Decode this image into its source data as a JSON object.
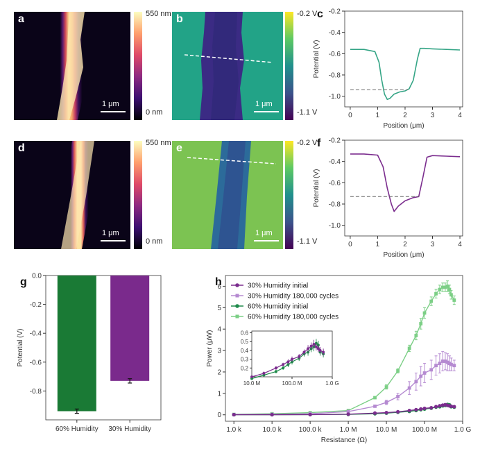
{
  "panels": {
    "a": {
      "label": "a",
      "scalebar": "1 μm",
      "cbar_top": "550 nm",
      "cbar_bottom": "0 nm"
    },
    "b": {
      "label": "b",
      "scalebar": "1 μm",
      "cbar_top": "-0.2 V",
      "cbar_bottom": "-1.1 V"
    },
    "c": {
      "label": "c"
    },
    "d": {
      "label": "d",
      "scalebar": "1 μm",
      "cbar_top": "550 nm",
      "cbar_bottom": "0 nm"
    },
    "e": {
      "label": "e",
      "scalebar": "1 μm",
      "cbar_top": "-0.2 V",
      "cbar_bottom": "-1.1 V"
    },
    "f": {
      "label": "f"
    },
    "g": {
      "label": "g"
    },
    "h": {
      "label": "h"
    }
  },
  "colors": {
    "green": "#1e8a4a",
    "light_green": "#7ccf86",
    "purple": "#7b2d8e",
    "light_purple": "#b58ad1",
    "teal": "#35a586",
    "bar_green": "#1a7a35",
    "bar_purple": "#7a2a8c"
  },
  "chart_data": [
    {
      "id": "c",
      "type": "line",
      "xlabel": "Position (μm)",
      "ylabel": "Potential (V)",
      "xlim": [
        -0.2,
        4.1
      ],
      "ylim": [
        -1.1,
        -0.2
      ],
      "xticks": [
        0,
        1,
        2,
        3,
        4
      ],
      "yticks": [
        -1.0,
        -0.8,
        -0.6,
        -0.4,
        -0.2
      ],
      "series": [
        {
          "x": [
            0,
            0.5,
            0.9,
            1.05,
            1.15,
            1.25,
            1.35,
            1.45,
            1.6,
            1.8,
            2.0,
            2.15,
            2.3,
            2.45,
            2.55,
            2.7,
            3.0,
            3.5,
            4.0
          ],
          "y": [
            -0.56,
            -0.56,
            -0.58,
            -0.68,
            -0.85,
            -0.98,
            -1.03,
            -1.02,
            -0.98,
            -0.96,
            -0.95,
            -0.93,
            -0.85,
            -0.65,
            -0.55,
            -0.55,
            -0.555,
            -0.56,
            -0.565
          ]
        }
      ],
      "reference_line": {
        "y": -0.94,
        "x_range": [
          0,
          2.1
        ]
      }
    },
    {
      "id": "f",
      "type": "line",
      "xlabel": "Position (μm)",
      "ylabel": "Potential (V)",
      "xlim": [
        -0.2,
        4.1
      ],
      "ylim": [
        -1.1,
        -0.2
      ],
      "xticks": [
        0,
        1,
        2,
        3,
        4
      ],
      "yticks": [
        -1.0,
        -0.8,
        -0.6,
        -0.4,
        -0.2
      ],
      "series": [
        {
          "x": [
            0,
            0.5,
            1.0,
            1.2,
            1.35,
            1.5,
            1.6,
            1.75,
            2.0,
            2.3,
            2.5,
            2.65,
            2.8,
            3.0,
            3.5,
            4.0
          ],
          "y": [
            -0.33,
            -0.33,
            -0.34,
            -0.45,
            -0.65,
            -0.8,
            -0.87,
            -0.82,
            -0.77,
            -0.74,
            -0.73,
            -0.55,
            -0.36,
            -0.345,
            -0.35,
            -0.355
          ]
        }
      ],
      "reference_line": {
        "y": -0.73,
        "x_range": [
          0,
          2.5
        ]
      }
    },
    {
      "id": "g",
      "type": "bar",
      "ylabel": "Potential (V)",
      "categories": [
        "60% Humidity",
        "30% Humidity"
      ],
      "values": [
        -0.94,
        -0.73
      ],
      "errors": [
        0.015,
        0.015
      ],
      "ylim": [
        -1.0,
        0.0
      ],
      "yticks": [
        0.0,
        -0.2,
        -0.4,
        -0.6,
        -0.8
      ]
    },
    {
      "id": "h",
      "type": "line",
      "xlabel": "Resistance (Ω)",
      "ylabel": "Power (μW)",
      "xscale": "log",
      "xlim": [
        600,
        1000000000
      ],
      "ylim": [
        -0.3,
        6.5
      ],
      "xticks": [
        1000,
        10000,
        100000,
        1000000,
        10000000,
        100000000,
        1000000000
      ],
      "xticklabels": [
        "1.0 k",
        "10.0 k",
        "100.0 k",
        "1.0 M",
        "10.0 M",
        "100.0 M",
        "1.0 G"
      ],
      "yticks": [
        0,
        1,
        2,
        3,
        4,
        5,
        6
      ],
      "legend": "top-left",
      "series": [
        {
          "name": "30% Humidity initial",
          "x": [
            1000,
            10000,
            100000,
            1000000,
            5000000,
            10000000,
            20000000,
            40000000,
            60000000,
            80000000,
            100000000,
            150000000,
            200000000,
            250000000,
            300000000,
            350000000,
            400000000,
            450000000,
            500000000,
            600000000
          ],
          "y": [
            0.005,
            0.006,
            0.01,
            0.03,
            0.08,
            0.1,
            0.14,
            0.2,
            0.24,
            0.27,
            0.3,
            0.33,
            0.38,
            0.42,
            0.45,
            0.47,
            0.44,
            0.42,
            0.4,
            0.38
          ],
          "err": [
            0,
            0,
            0,
            0,
            0.01,
            0.01,
            0.02,
            0.02,
            0.02,
            0.03,
            0.03,
            0.03,
            0.03,
            0.04,
            0.04,
            0.05,
            0.04,
            0.04,
            0.04,
            0.04
          ]
        },
        {
          "name": "30% Humidity 180,000 cycles",
          "x": [
            1000,
            10000,
            100000,
            1000000,
            5000000,
            10000000,
            20000000,
            40000000,
            60000000,
            80000000,
            100000000,
            150000000,
            200000000,
            250000000,
            300000000,
            350000000,
            400000000,
            450000000,
            500000000,
            600000000
          ],
          "y": [
            0.01,
            0.02,
            0.05,
            0.15,
            0.4,
            0.58,
            0.85,
            1.25,
            1.55,
            1.8,
            1.95,
            2.1,
            2.3,
            2.4,
            2.5,
            2.5,
            2.45,
            2.4,
            2.35,
            2.3
          ],
          "err": [
            0,
            0,
            0,
            0,
            0.05,
            0.1,
            0.15,
            0.3,
            0.4,
            0.45,
            0.45,
            0.45,
            0.45,
            0.45,
            0.45,
            0.4,
            0.4,
            0.35,
            0.3,
            0.25
          ]
        },
        {
          "name": "60% Humidity initial",
          "x": [
            1000,
            10000,
            100000,
            1000000,
            5000000,
            10000000,
            20000000,
            40000000,
            60000000,
            80000000,
            100000000,
            150000000,
            200000000,
            250000000,
            300000000,
            350000000,
            400000000,
            450000000,
            500000000,
            600000000
          ],
          "y": [
            0.005,
            0.006,
            0.01,
            0.02,
            0.05,
            0.08,
            0.12,
            0.16,
            0.2,
            0.24,
            0.27,
            0.31,
            0.36,
            0.38,
            0.42,
            0.44,
            0.48,
            0.46,
            0.38,
            0.36
          ],
          "err": [
            0,
            0,
            0,
            0,
            0.01,
            0.01,
            0.02,
            0.02,
            0.02,
            0.03,
            0.03,
            0.03,
            0.03,
            0.04,
            0.04,
            0.05,
            0.05,
            0.05,
            0.04,
            0.04
          ]
        },
        {
          "name": "60% Humidity 180,000 cycles",
          "x": [
            1000,
            10000,
            100000,
            1000000,
            5000000,
            10000000,
            20000000,
            40000000,
            60000000,
            80000000,
            100000000,
            150000000,
            200000000,
            250000000,
            300000000,
            350000000,
            400000000,
            450000000,
            500000000,
            600000000
          ],
          "y": [
            0.02,
            0.05,
            0.1,
            0.2,
            0.8,
            1.3,
            2.05,
            3.1,
            3.7,
            4.25,
            4.75,
            5.3,
            5.65,
            5.85,
            5.95,
            5.95,
            6.0,
            5.85,
            5.6,
            5.35
          ],
          "err": [
            0,
            0,
            0,
            0,
            0.05,
            0.1,
            0.1,
            0.15,
            0.2,
            0.25,
            0.25,
            0.2,
            0.2,
            0.2,
            0.2,
            0.2,
            0.25,
            0.2,
            0.2,
            0.2
          ]
        }
      ],
      "inset": {
        "xscale": "log",
        "xlim": [
          10000000,
          1000000000
        ],
        "ylim": [
          0.1,
          0.62
        ],
        "xticks": [
          10000000,
          100000000,
          1000000000
        ],
        "xticklabels": [
          "10.0 M",
          "100.0 M",
          "1.0 G"
        ],
        "yticks": [
          0.2,
          0.3,
          0.4,
          0.5,
          0.6
        ],
        "yticklabels": [
          "0.2",
          "0.3",
          "0.4",
          "0.5",
          "0.6"
        ]
      }
    }
  ]
}
